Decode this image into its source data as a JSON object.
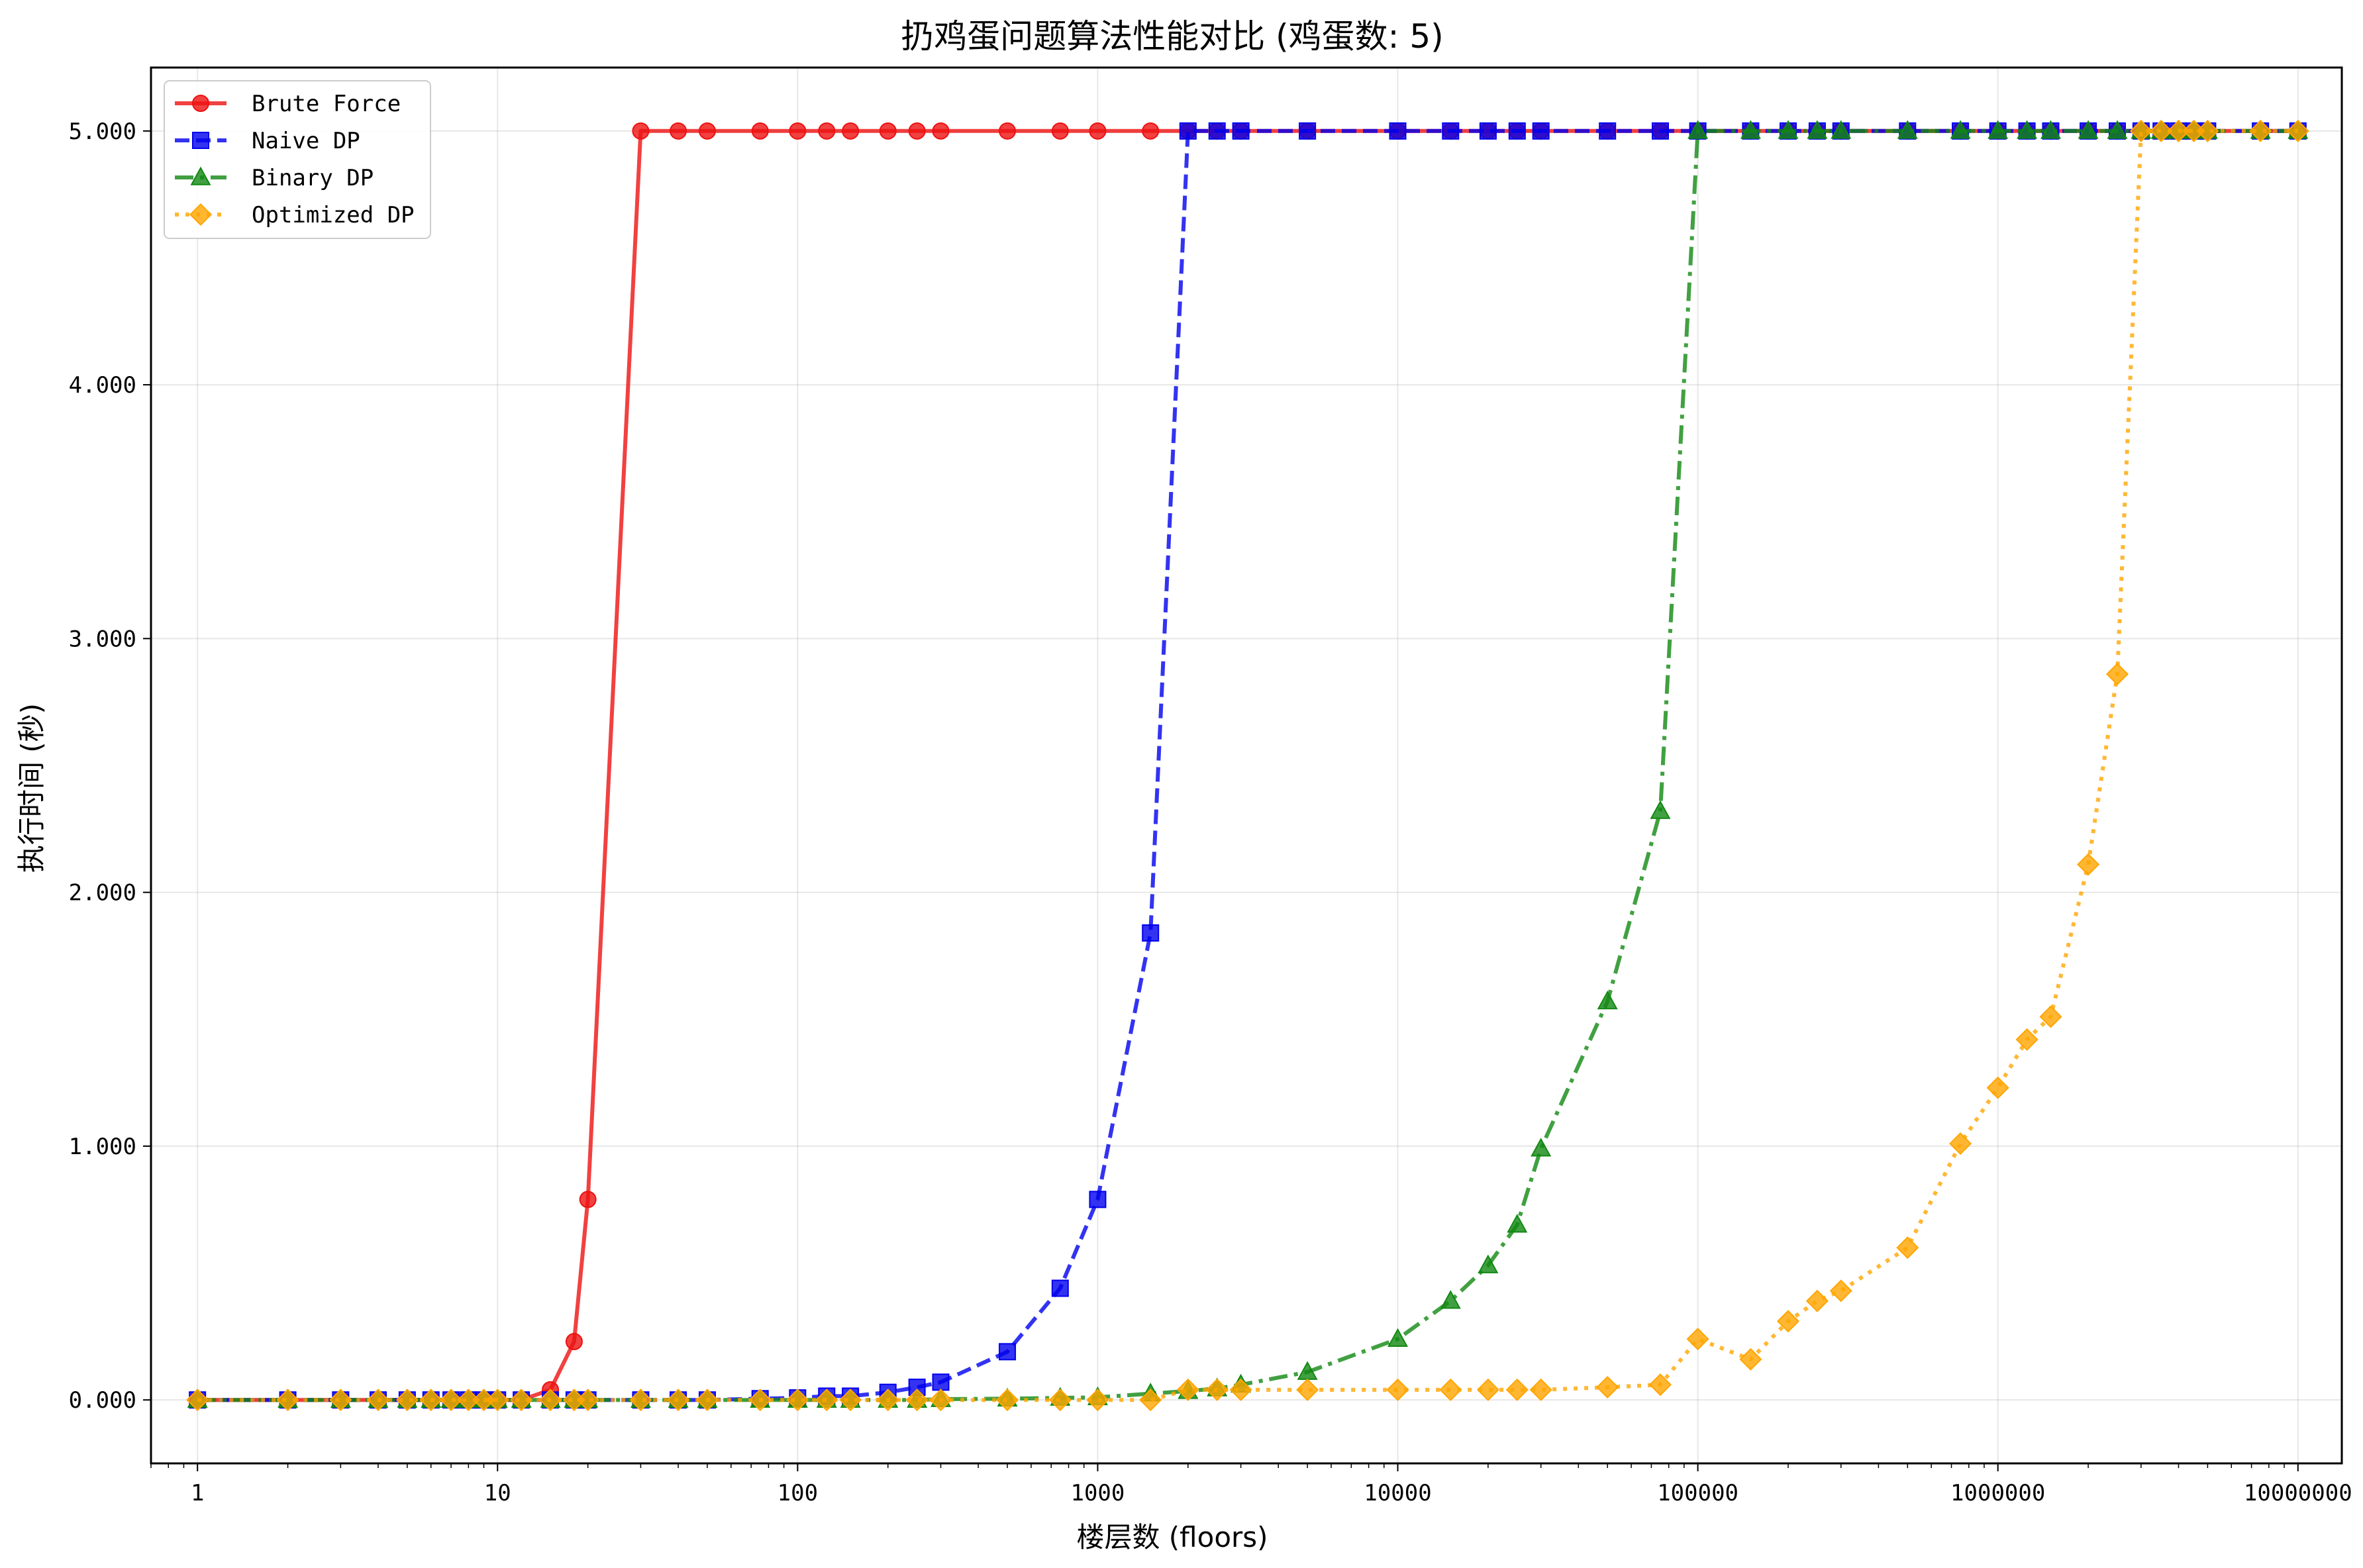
{
  "chart_data": {
    "type": "line",
    "title": "扔鸡蛋问题算法性能对比 (鸡蛋数: 5)",
    "xlabel": "楼层数 (floors)",
    "ylabel": "执行时间 (秒)",
    "xscale": "log",
    "xlim": [
      0.7,
      14000000
    ],
    "ylim": [
      -0.25,
      5.25
    ],
    "xticks": [
      1,
      10,
      100,
      1000,
      10000,
      100000,
      1000000,
      10000000
    ],
    "xtick_labels": [
      "1",
      "10",
      "100",
      "1000",
      "10000",
      "100000",
      "1000000",
      "10000000"
    ],
    "yticks": [
      0,
      1,
      2,
      3,
      4,
      5
    ],
    "ytick_labels": [
      "0.000",
      "1.000",
      "2.000",
      "3.000",
      "4.000",
      "5.000"
    ],
    "grid": true,
    "legend_position": "top-left",
    "series": [
      {
        "name": "Brute Force",
        "color": "#ee1111",
        "marker": "circle",
        "linestyle": "solid",
        "points": [
          [
            1,
            0
          ],
          [
            2,
            0
          ],
          [
            3,
            0
          ],
          [
            4,
            0
          ],
          [
            5,
            0
          ],
          [
            6,
            0
          ],
          [
            7,
            0
          ],
          [
            8,
            0
          ],
          [
            9,
            0
          ],
          [
            10,
            0
          ],
          [
            12,
            0
          ],
          [
            15,
            0.04
          ],
          [
            18,
            0.23
          ],
          [
            20,
            0.79
          ],
          [
            30,
            5
          ],
          [
            40,
            5
          ],
          [
            50,
            5
          ],
          [
            75,
            5
          ],
          [
            100,
            5
          ],
          [
            125,
            5
          ],
          [
            150,
            5
          ],
          [
            200,
            5
          ],
          [
            250,
            5
          ],
          [
            300,
            5
          ],
          [
            500,
            5
          ],
          [
            750,
            5
          ],
          [
            1000,
            5
          ],
          [
            1500,
            5
          ],
          [
            2000,
            5
          ],
          [
            2500,
            5
          ],
          [
            3000,
            5
          ],
          [
            5000,
            5
          ],
          [
            10000,
            5
          ],
          [
            15000,
            5
          ],
          [
            20000,
            5
          ],
          [
            25000,
            5
          ],
          [
            30000,
            5
          ],
          [
            50000,
            5
          ],
          [
            75000,
            5
          ],
          [
            100000,
            5
          ],
          [
            150000,
            5
          ],
          [
            200000,
            5
          ],
          [
            250000,
            5
          ],
          [
            300000,
            5
          ],
          [
            500000,
            5
          ],
          [
            750000,
            5
          ],
          [
            1000000,
            5
          ],
          [
            1250000,
            5
          ],
          [
            1500000,
            5
          ],
          [
            2000000,
            5
          ],
          [
            2500000,
            5
          ],
          [
            3000000,
            5
          ],
          [
            3500000,
            5
          ],
          [
            4000000,
            5
          ],
          [
            4500000,
            5
          ],
          [
            5000000,
            5
          ],
          [
            7500000,
            5
          ],
          [
            10000000,
            5
          ]
        ]
      },
      {
        "name": "Naive DP",
        "color": "#0000ee",
        "marker": "square",
        "linestyle": "dashed",
        "points": [
          [
            1,
            0
          ],
          [
            2,
            0
          ],
          [
            3,
            0
          ],
          [
            4,
            0
          ],
          [
            5,
            0
          ],
          [
            6,
            0
          ],
          [
            7,
            0
          ],
          [
            8,
            0
          ],
          [
            9,
            0
          ],
          [
            10,
            0
          ],
          [
            12,
            0
          ],
          [
            15,
            0
          ],
          [
            18,
            0
          ],
          [
            20,
            0
          ],
          [
            30,
            0
          ],
          [
            40,
            0
          ],
          [
            50,
            0
          ],
          [
            75,
            0.005
          ],
          [
            100,
            0.008
          ],
          [
            125,
            0.015
          ],
          [
            150,
            0.015
          ],
          [
            200,
            0.03
          ],
          [
            250,
            0.05
          ],
          [
            300,
            0.07
          ],
          [
            500,
            0.19
          ],
          [
            750,
            0.44
          ],
          [
            1000,
            0.79
          ],
          [
            1500,
            1.84
          ],
          [
            2000,
            5
          ],
          [
            2500,
            5
          ],
          [
            3000,
            5
          ],
          [
            5000,
            5
          ],
          [
            10000,
            5
          ],
          [
            15000,
            5
          ],
          [
            20000,
            5
          ],
          [
            25000,
            5
          ],
          [
            30000,
            5
          ],
          [
            50000,
            5
          ],
          [
            75000,
            5
          ],
          [
            100000,
            5
          ],
          [
            150000,
            5
          ],
          [
            200000,
            5
          ],
          [
            250000,
            5
          ],
          [
            300000,
            5
          ],
          [
            500000,
            5
          ],
          [
            750000,
            5
          ],
          [
            1000000,
            5
          ],
          [
            1250000,
            5
          ],
          [
            1500000,
            5
          ],
          [
            2000000,
            5
          ],
          [
            2500000,
            5
          ],
          [
            3000000,
            5
          ],
          [
            3500000,
            5
          ],
          [
            4000000,
            5
          ],
          [
            4500000,
            5
          ],
          [
            5000000,
            5
          ],
          [
            7500000,
            5
          ],
          [
            10000000,
            5
          ]
        ]
      },
      {
        "name": "Binary DP",
        "color": "#118811",
        "marker": "triangle",
        "linestyle": "dashdot",
        "points": [
          [
            1,
            0
          ],
          [
            2,
            0
          ],
          [
            3,
            0
          ],
          [
            4,
            0
          ],
          [
            5,
            0
          ],
          [
            6,
            0
          ],
          [
            7,
            0
          ],
          [
            8,
            0
          ],
          [
            9,
            0
          ],
          [
            10,
            0
          ],
          [
            12,
            0
          ],
          [
            15,
            0
          ],
          [
            18,
            0
          ],
          [
            20,
            0
          ],
          [
            30,
            0
          ],
          [
            40,
            0
          ],
          [
            50,
            0
          ],
          [
            75,
            0
          ],
          [
            100,
            0
          ],
          [
            125,
            0
          ],
          [
            150,
            0
          ],
          [
            200,
            0
          ],
          [
            250,
            0
          ],
          [
            300,
            0.003
          ],
          [
            500,
            0.005
          ],
          [
            750,
            0.008
          ],
          [
            1000,
            0.01
          ],
          [
            1500,
            0.025
          ],
          [
            2000,
            0.035
          ],
          [
            2500,
            0.045
          ],
          [
            3000,
            0.06
          ],
          [
            5000,
            0.11
          ],
          [
            10000,
            0.24
          ],
          [
            15000,
            0.39
          ],
          [
            20000,
            0.53
          ],
          [
            25000,
            0.69
          ],
          [
            30000,
            0.99
          ],
          [
            50000,
            1.57
          ],
          [
            75000,
            2.32
          ],
          [
            100000,
            5
          ],
          [
            150000,
            5
          ],
          [
            200000,
            5
          ],
          [
            250000,
            5
          ],
          [
            300000,
            5
          ],
          [
            500000,
            5
          ],
          [
            750000,
            5
          ],
          [
            1000000,
            5
          ],
          [
            1250000,
            5
          ],
          [
            1500000,
            5
          ],
          [
            2000000,
            5
          ],
          [
            2500000,
            5
          ],
          [
            3000000,
            5
          ],
          [
            3500000,
            5
          ],
          [
            4000000,
            5
          ],
          [
            4500000,
            5
          ],
          [
            5000000,
            5
          ],
          [
            7500000,
            5
          ],
          [
            10000000,
            5
          ]
        ]
      },
      {
        "name": "Optimized DP",
        "color": "#ffa500",
        "marker": "diamond",
        "linestyle": "dotted",
        "points": [
          [
            1,
            0
          ],
          [
            2,
            0
          ],
          [
            3,
            0
          ],
          [
            4,
            0
          ],
          [
            5,
            0
          ],
          [
            6,
            0
          ],
          [
            7,
            0
          ],
          [
            8,
            0
          ],
          [
            9,
            0
          ],
          [
            10,
            0
          ],
          [
            12,
            0
          ],
          [
            15,
            0
          ],
          [
            18,
            0
          ],
          [
            20,
            0
          ],
          [
            30,
            0
          ],
          [
            40,
            0
          ],
          [
            50,
            0
          ],
          [
            75,
            0
          ],
          [
            100,
            0
          ],
          [
            125,
            0
          ],
          [
            150,
            0
          ],
          [
            200,
            0
          ],
          [
            250,
            0
          ],
          [
            300,
            0
          ],
          [
            500,
            0
          ],
          [
            750,
            0
          ],
          [
            1000,
            0
          ],
          [
            1500,
            0
          ],
          [
            2000,
            0.04
          ],
          [
            2500,
            0.04
          ],
          [
            3000,
            0.04
          ],
          [
            5000,
            0.04
          ],
          [
            10000,
            0.04
          ],
          [
            15000,
            0.04
          ],
          [
            20000,
            0.04
          ],
          [
            25000,
            0.04
          ],
          [
            30000,
            0.04
          ],
          [
            50000,
            0.05
          ],
          [
            75000,
            0.06
          ],
          [
            100000,
            0.24
          ],
          [
            150000,
            0.16
          ],
          [
            200000,
            0.31
          ],
          [
            250000,
            0.39
          ],
          [
            300000,
            0.43
          ],
          [
            500000,
            0.6
          ],
          [
            750000,
            1.01
          ],
          [
            1000000,
            1.23
          ],
          [
            1250000,
            1.42
          ],
          [
            1500000,
            1.51
          ],
          [
            2000000,
            2.11
          ],
          [
            2500000,
            2.86
          ],
          [
            3000000,
            5
          ],
          [
            3500000,
            5
          ],
          [
            4000000,
            5
          ],
          [
            4500000,
            5
          ],
          [
            5000000,
            5
          ],
          [
            7500000,
            5
          ],
          [
            10000000,
            5
          ]
        ]
      }
    ]
  }
}
